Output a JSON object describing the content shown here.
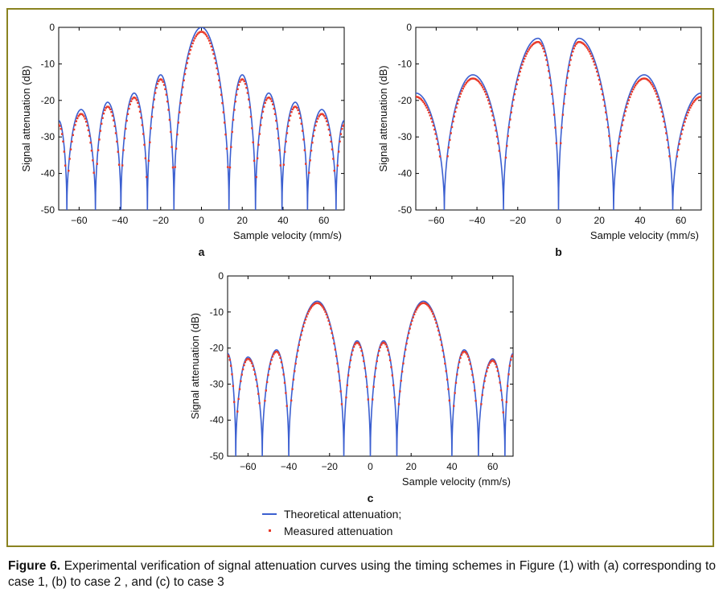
{
  "figure": {
    "caption_label": "Figure 6.",
    "caption_text": " Experimental verification of signal attenuation curves using the timing schemes in Figure (1) with (a) corresponding to case 1, (b) to case 2 , and (c) to case 3"
  },
  "legend": {
    "theoretical": "Theoretical attenuation;",
    "measured": "Measured attenuation"
  },
  "colors": {
    "theoretical": "#3b5fd0",
    "measured": "#e83a2a",
    "frame": "#8a8320"
  },
  "chart_data": [
    {
      "type": "line",
      "panel_label": "a",
      "xlabel": "Sample velocity (mm/s)",
      "ylabel": "Signal attenuation (dB)",
      "xlim": [
        -70,
        70
      ],
      "ylim": [
        -50,
        0
      ],
      "xticks": [
        -60,
        -40,
        -20,
        0,
        20,
        40,
        60
      ],
      "yticks": [
        0,
        -10,
        -20,
        -30,
        -40,
        -50
      ],
      "xticklabels": [
        "−60",
        "−40",
        "−20",
        "0",
        "20",
        "40",
        "60"
      ],
      "yticklabels": [
        "0",
        "-10",
        "-20",
        "-30",
        "-40",
        "-50"
      ],
      "nulls": [
        -66,
        -52,
        -39.5,
        -26.5,
        -13.5,
        13.5,
        26.5,
        39.5,
        52,
        66
      ],
      "peaks": [
        {
          "x": -59,
          "y": -22.5
        },
        {
          "x": -46,
          "y": -20.5
        },
        {
          "x": -33,
          "y": -18
        },
        {
          "x": -20,
          "y": -13
        },
        {
          "x": 0,
          "y": 0
        },
        {
          "x": 20,
          "y": -13
        },
        {
          "x": 33,
          "y": -18
        },
        {
          "x": 46,
          "y": -20.5
        },
        {
          "x": 59,
          "y": -22.5
        }
      ],
      "edge_values": {
        "left": -25.5,
        "right": -25.5
      },
      "measured_offset": -1.2,
      "measured_floor": -42,
      "series": [
        {
          "name": "Theoretical attenuation;"
        },
        {
          "name": "Measured attenuation"
        }
      ]
    },
    {
      "type": "line",
      "panel_label": "b",
      "xlabel": "Sample velocity (mm/s)",
      "ylabel": "Signal attenuation (dB)",
      "xlim": [
        -70,
        70
      ],
      "ylim": [
        -50,
        0
      ],
      "xticks": [
        -60,
        -40,
        -20,
        0,
        20,
        40,
        60
      ],
      "yticks": [
        0,
        -10,
        -20,
        -30,
        -40,
        -50
      ],
      "xticklabels": [
        "−60",
        "−40",
        "−20",
        "0",
        "20",
        "40",
        "60"
      ],
      "yticklabels": [
        "0",
        "-10",
        "-20",
        "-30",
        "-40",
        "-50"
      ],
      "nulls": [
        -56,
        -27,
        0,
        27,
        56
      ],
      "peaks": [
        {
          "x": -42,
          "y": -13
        },
        {
          "x": -10,
          "y": -3
        },
        {
          "x": 10,
          "y": -3
        },
        {
          "x": 42,
          "y": -13
        }
      ],
      "edge_values": {
        "left": -18,
        "right": -18
      },
      "measured_offset": -1.0,
      "measured_floor": -36,
      "series": [
        {
          "name": "Theoretical attenuation;"
        },
        {
          "name": "Measured attenuation"
        }
      ]
    },
    {
      "type": "line",
      "panel_label": "c",
      "xlabel": "Sample velocity (mm/s)",
      "ylabel": "Signal attenuation (dB)",
      "xlim": [
        -70,
        70
      ],
      "ylim": [
        -50,
        0
      ],
      "xticks": [
        -60,
        -40,
        -20,
        0,
        20,
        40,
        60
      ],
      "yticks": [
        0,
        -10,
        -20,
        -30,
        -40,
        -50
      ],
      "xticklabels": [
        "−60",
        "−40",
        "−20",
        "0",
        "20",
        "40",
        "60"
      ],
      "yticklabels": [
        "0",
        "-10",
        "-20",
        "-30",
        "-40",
        "-50"
      ],
      "nulls": [
        -66,
        -53,
        -40,
        -13,
        0,
        13,
        40,
        53,
        66
      ],
      "peaks": [
        {
          "x": -60,
          "y": -22.5
        },
        {
          "x": -46,
          "y": -20.5
        },
        {
          "x": -26,
          "y": -7
        },
        {
          "x": -6.5,
          "y": -18
        },
        {
          "x": 6.5,
          "y": -18
        },
        {
          "x": 26,
          "y": -7
        },
        {
          "x": 46,
          "y": -20.5
        },
        {
          "x": 60,
          "y": -23
        }
      ],
      "edge_values": {
        "left": -21.5,
        "right": -21.5
      },
      "measured_offset": -0.5,
      "measured_floor": -38,
      "series": [
        {
          "name": "Theoretical attenuation;"
        },
        {
          "name": "Measured attenuation"
        }
      ]
    }
  ]
}
